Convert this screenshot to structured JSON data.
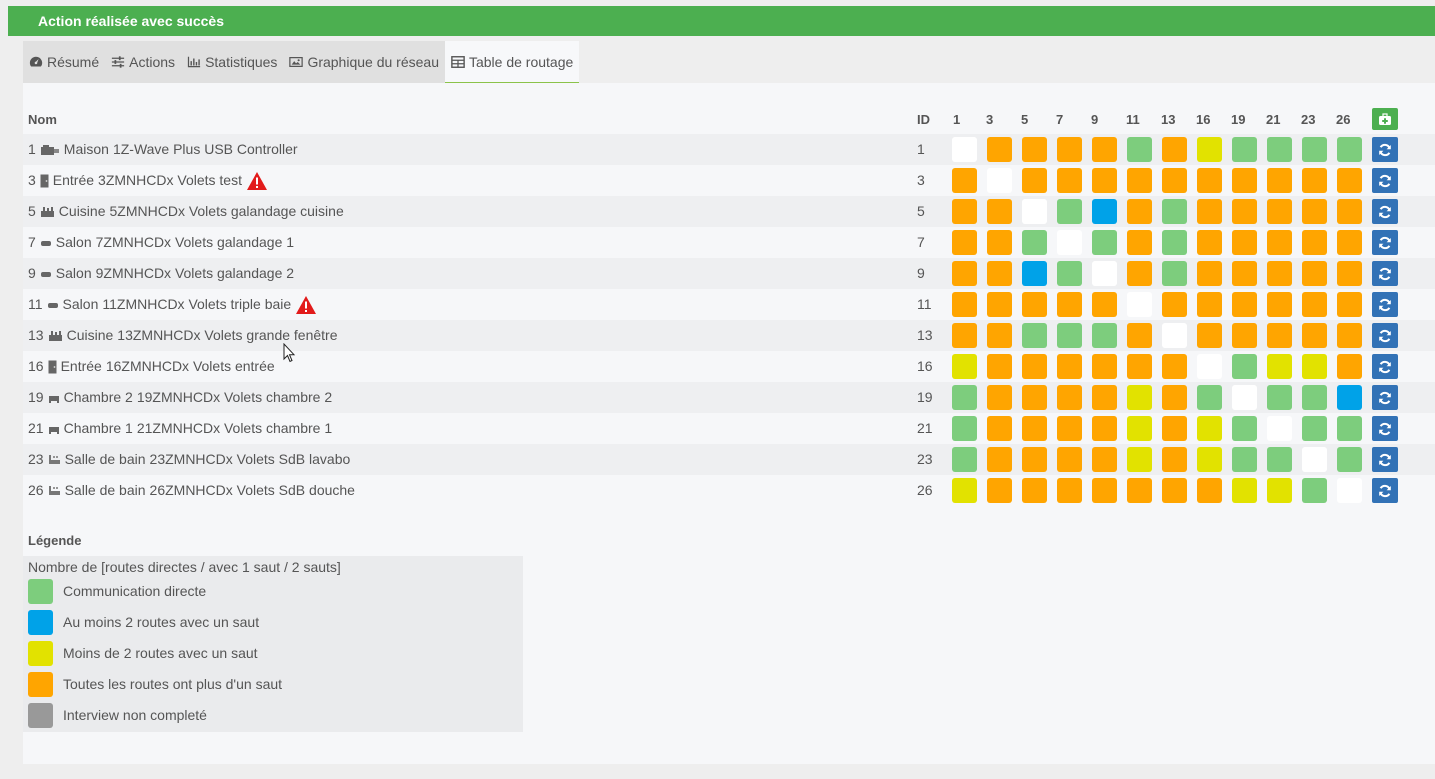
{
  "alert": {
    "message": "Action réalisée avec succès"
  },
  "tabs": [
    {
      "label": "Résumé",
      "icon": "dashboard-icon"
    },
    {
      "label": "Actions",
      "icon": "sliders-icon"
    },
    {
      "label": "Statistiques",
      "icon": "bar-chart-icon"
    },
    {
      "label": "Graphique du réseau",
      "icon": "image-icon"
    },
    {
      "label": "Table de routage",
      "icon": "table-icon",
      "active": true
    }
  ],
  "table": {
    "col_name": "Nom",
    "col_id": "ID",
    "node_ids": [
      "1",
      "3",
      "5",
      "7",
      "9",
      "11",
      "13",
      "16",
      "19",
      "21",
      "23",
      "26"
    ],
    "rows": [
      {
        "prefix": "1",
        "icon": "controller-icon",
        "room": "Maison",
        "name": "1Z-Wave Plus USB Controller",
        "id": "1",
        "warning": false,
        "cells": [
          "white",
          "orange",
          "orange",
          "orange",
          "orange",
          "green",
          "orange",
          "yellow",
          "green",
          "green",
          "green",
          "green"
        ]
      },
      {
        "prefix": "3",
        "icon": "door-icon",
        "room": "Entrée",
        "name": "3ZMNHCDx Volets test",
        "id": "3",
        "warning": true,
        "cells": [
          "orange",
          "white",
          "orange",
          "orange",
          "orange",
          "orange",
          "orange",
          "orange",
          "orange",
          "orange",
          "orange",
          "orange"
        ]
      },
      {
        "prefix": "5",
        "icon": "kitchen-icon",
        "room": "Cuisine",
        "name": "5ZMNHCDx Volets galandage cuisine",
        "id": "5",
        "warning": false,
        "cells": [
          "orange",
          "orange",
          "white",
          "green",
          "blue",
          "orange",
          "green",
          "orange",
          "orange",
          "orange",
          "orange",
          "orange"
        ]
      },
      {
        "prefix": "7",
        "icon": "sofa-icon",
        "room": "Salon",
        "name": "7ZMNHCDx Volets galandage 1",
        "id": "7",
        "warning": false,
        "cells": [
          "orange",
          "orange",
          "green",
          "white",
          "green",
          "orange",
          "green",
          "orange",
          "orange",
          "orange",
          "orange",
          "orange"
        ]
      },
      {
        "prefix": "9",
        "icon": "sofa-icon",
        "room": "Salon",
        "name": "9ZMNHCDx Volets galandage 2",
        "id": "9",
        "warning": false,
        "cells": [
          "orange",
          "orange",
          "blue",
          "green",
          "white",
          "orange",
          "green",
          "orange",
          "orange",
          "orange",
          "orange",
          "orange"
        ]
      },
      {
        "prefix": "11",
        "icon": "sofa-icon",
        "room": "Salon",
        "name": "11ZMNHCDx Volets triple baie",
        "id": "11",
        "warning": true,
        "cells": [
          "orange",
          "orange",
          "orange",
          "orange",
          "orange",
          "white",
          "orange",
          "orange",
          "orange",
          "orange",
          "orange",
          "orange"
        ]
      },
      {
        "prefix": "13",
        "icon": "kitchen-icon",
        "room": "Cuisine",
        "name": "13ZMNHCDx Volets grande fenêtre",
        "id": "13",
        "warning": false,
        "cells": [
          "orange",
          "orange",
          "green",
          "green",
          "green",
          "orange",
          "white",
          "orange",
          "orange",
          "orange",
          "orange",
          "orange"
        ]
      },
      {
        "prefix": "16",
        "icon": "door-icon",
        "room": "Entrée",
        "name": "16ZMNHCDx Volets entrée",
        "id": "16",
        "warning": false,
        "cells": [
          "yellow",
          "orange",
          "orange",
          "orange",
          "orange",
          "orange",
          "orange",
          "white",
          "green",
          "yellow",
          "yellow",
          "orange"
        ]
      },
      {
        "prefix": "19",
        "icon": "bed-icon",
        "room": "Chambre 2",
        "name": "19ZMNHCDx Volets chambre 2",
        "id": "19",
        "warning": false,
        "cells": [
          "green",
          "orange",
          "orange",
          "orange",
          "orange",
          "yellow",
          "orange",
          "green",
          "white",
          "green",
          "green",
          "blue"
        ]
      },
      {
        "prefix": "21",
        "icon": "bed-icon",
        "room": "Chambre 1",
        "name": "21ZMNHCDx Volets chambre 1",
        "id": "21",
        "warning": false,
        "cells": [
          "green",
          "orange",
          "orange",
          "orange",
          "orange",
          "yellow",
          "orange",
          "yellow",
          "green",
          "white",
          "green",
          "green"
        ]
      },
      {
        "prefix": "23",
        "icon": "bath-icon",
        "room": "Salle de bain",
        "name": "23ZMNHCDx Volets SdB lavabo",
        "id": "23",
        "warning": false,
        "cells": [
          "green",
          "orange",
          "orange",
          "orange",
          "orange",
          "yellow",
          "orange",
          "yellow",
          "green",
          "green",
          "white",
          "green"
        ]
      },
      {
        "prefix": "26",
        "icon": "bath-icon",
        "room": "Salle de bain",
        "name": "26ZMNHCDx Volets SdB douche",
        "id": "26",
        "warning": false,
        "cells": [
          "yellow",
          "orange",
          "orange",
          "orange",
          "orange",
          "orange",
          "orange",
          "orange",
          "yellow",
          "yellow",
          "green",
          "white"
        ]
      }
    ]
  },
  "colors": {
    "white": "#ffffff",
    "orange": "#ffa500",
    "green": "#7dcd7d",
    "blue": "#00a2e8",
    "yellow": "#e2e200",
    "grey": "#999999",
    "refresh": "#3272b6",
    "success": "#4caf50"
  },
  "legend": {
    "title": "Légende",
    "subtitle": "Nombre de [routes directes / avec 1 saut / 2 sauts]",
    "items": [
      {
        "color": "green",
        "label": "Communication directe"
      },
      {
        "color": "blue",
        "label": "Au moins 2 routes avec un saut"
      },
      {
        "color": "yellow",
        "label": "Moins de 2 routes avec un saut"
      },
      {
        "color": "orange",
        "label": "Toutes les routes ont plus d'un saut"
      },
      {
        "color": "grey",
        "label": "Interview non completé"
      }
    ]
  }
}
